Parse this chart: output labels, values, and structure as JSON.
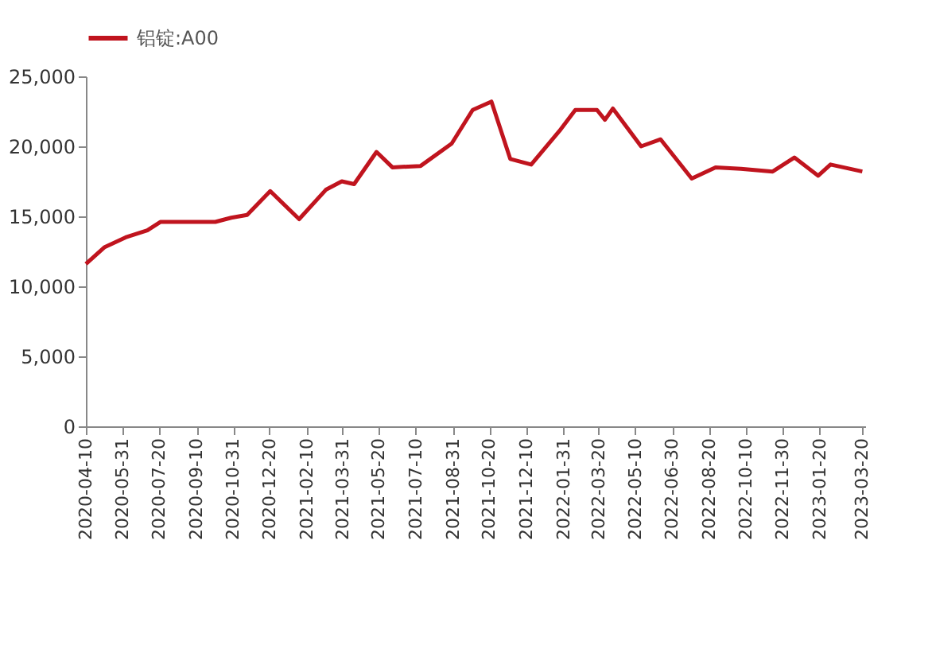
{
  "chart_data": {
    "type": "line",
    "legend": "top",
    "x": [
      "2020-04-10",
      "2020-05-06",
      "2020-06-04",
      "2020-07-04",
      "2020-07-22",
      "2020-08-23",
      "2020-10-06",
      "2020-10-28",
      "2020-11-19",
      "2020-12-21",
      "2021-01-30",
      "2021-03-08",
      "2021-03-30",
      "2021-04-16",
      "2021-05-17",
      "2021-06-08",
      "2021-07-17",
      "2021-08-29",
      "2021-09-27",
      "2021-10-23",
      "2021-11-18",
      "2021-12-17",
      "2022-01-25",
      "2022-02-16",
      "2022-03-18",
      "2022-03-29",
      "2022-04-09",
      "2022-05-18",
      "2022-06-14",
      "2022-07-27",
      "2022-08-29",
      "2022-10-03",
      "2022-11-16",
      "2022-12-16",
      "2023-01-18",
      "2023-02-04",
      "2023-03-20"
    ],
    "series": [
      {
        "name": "铝锭:A00",
        "color": "#c0141e",
        "values": [
          11600,
          12800,
          13500,
          14000,
          14600,
          14600,
          14600,
          14900,
          15100,
          16800,
          14800,
          16900,
          17500,
          17300,
          19600,
          18500,
          18600,
          20200,
          22600,
          23200,
          19100,
          18700,
          21100,
          22600,
          22600,
          21900,
          22700,
          20000,
          20500,
          17700,
          18500,
          18400,
          18200,
          19200,
          17900,
          18700,
          18200
        ]
      }
    ],
    "xlim": [
      "2020-04-10",
      "2023-03-24"
    ],
    "xticks": [
      "2020-04-10",
      "2020-05-31",
      "2020-07-20",
      "2020-09-10",
      "2020-10-31",
      "2020-12-20",
      "2021-02-10",
      "2021-03-31",
      "2021-05-20",
      "2021-07-10",
      "2021-08-31",
      "2021-10-20",
      "2021-12-10",
      "2022-01-31",
      "2022-03-20",
      "2022-05-10",
      "2022-06-30",
      "2022-08-20",
      "2022-10-10",
      "2022-11-30",
      "2023-01-20",
      "2023-03-20"
    ],
    "ylim": [
      0,
      25000
    ],
    "yticks": [
      {
        "value": 0,
        "label": "0"
      },
      {
        "value": 5000,
        "label": "5,000"
      },
      {
        "value": 10000,
        "label": "10,000"
      },
      {
        "value": 15000,
        "label": "15,000"
      },
      {
        "value": 20000,
        "label": "20,000"
      },
      {
        "value": 25000,
        "label": "25,000"
      }
    ],
    "grid": false,
    "line_style": "solid"
  }
}
